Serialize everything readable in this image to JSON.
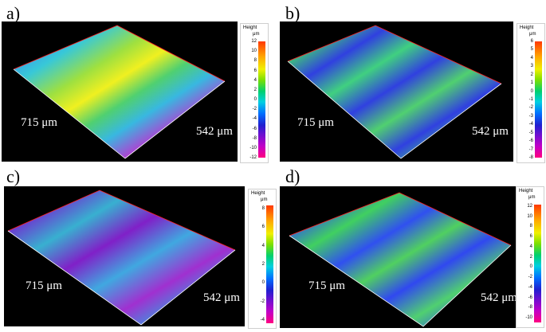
{
  "colors": {
    "background": "#000000",
    "frame": "#ff2020"
  },
  "panels": [
    {
      "label": "a)",
      "dim_x": "715 μm",
      "dim_y": "542 μm",
      "legend_title": "Height",
      "legend_unit": "μm",
      "ticks": [
        "12",
        "10",
        "8",
        "6",
        "4",
        "2",
        "0",
        "-2",
        "-4",
        "-6",
        "-8",
        "-10",
        "-12"
      ]
    },
    {
      "label": "b)",
      "dim_x": "715 μm",
      "dim_y": "542 μm",
      "legend_title": "Height",
      "legend_unit": "μm",
      "ticks": [
        "6",
        "5",
        "4",
        "3",
        "2",
        "1",
        "0",
        "-1",
        "-2",
        "-3",
        "-4",
        "-5",
        "-6",
        "-7",
        "-8"
      ]
    },
    {
      "label": "c)",
      "dim_x": "715 μm",
      "dim_y": "542 μm",
      "legend_title": "Height",
      "legend_unit": "μm",
      "ticks": [
        "8",
        "6",
        "4",
        "2",
        "0",
        "-2",
        "-4"
      ]
    },
    {
      "label": "d)",
      "dim_x": "715 μm",
      "dim_y": "542 μm",
      "legend_title": "Height",
      "legend_unit": "μm",
      "ticks": [
        "12",
        "10",
        "8",
        "6",
        "4",
        "2",
        "0",
        "-2",
        "-4",
        "-6",
        "-8",
        "-10"
      ]
    }
  ]
}
